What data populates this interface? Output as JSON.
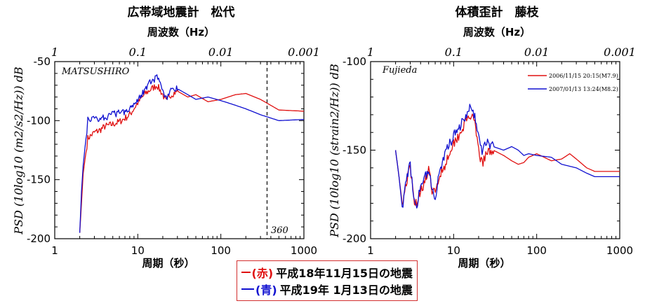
{
  "legend": {
    "items": [
      {
        "color_label": "(赤)",
        "text": "平成18年11月15日の地震",
        "color": "#e01010"
      },
      {
        "color_label": "(青)",
        "text": "平成19年 1月13日の地震",
        "color": "#1010d0"
      }
    ]
  },
  "chart_data": [
    {
      "type": "line",
      "title": "広帯域地震計　松代",
      "top_axis_label": "周波数（Hz）",
      "top_ticks": [
        "1",
        "0.1",
        "0.01",
        "0.001"
      ],
      "xlabel": "周期（秒）",
      "ylabel": "PSD (10log10 (m2/s2/Hz)) dB",
      "xscale": "log",
      "xlim": [
        1,
        1000
      ],
      "ylim": [
        -200,
        -50
      ],
      "x_ticks": [
        "1",
        "10",
        "100",
        "1000"
      ],
      "y_ticks": [
        "-50",
        "-100",
        "-150",
        "-200"
      ],
      "station": "MATSUSHIRO",
      "annotation": {
        "label": "360",
        "x": 360
      },
      "series": [
        {
          "color": "#e01010",
          "points": [
            [
              2,
              -195
            ],
            [
              2.1,
              -170
            ],
            [
              2.2,
              -145
            ],
            [
              2.5,
              -115
            ],
            [
              3,
              -110
            ],
            [
              3.5,
              -108
            ],
            [
              4,
              -105
            ],
            [
              5,
              -103
            ],
            [
              6,
              -101
            ],
            [
              7,
              -98
            ],
            [
              8,
              -95
            ],
            [
              10,
              -85
            ],
            [
              12,
              -78
            ],
            [
              14,
              -74
            ],
            [
              17,
              -70
            ],
            [
              20,
              -78
            ],
            [
              22,
              -84
            ],
            [
              25,
              -78
            ],
            [
              30,
              -75
            ],
            [
              40,
              -80
            ],
            [
              50,
              -78
            ],
            [
              70,
              -84
            ],
            [
              100,
              -82
            ],
            [
              150,
              -78
            ],
            [
              200,
              -77
            ],
            [
              300,
              -82
            ],
            [
              500,
              -91
            ],
            [
              1000,
              -92
            ]
          ]
        },
        {
          "color": "#1010d0",
          "points": [
            [
              2,
              -195
            ],
            [
              2.1,
              -160
            ],
            [
              2.2,
              -138
            ],
            [
              2.5,
              -100
            ],
            [
              3,
              -98
            ],
            [
              3.5,
              -98
            ],
            [
              4,
              -97
            ],
            [
              5,
              -95
            ],
            [
              6,
              -93
            ],
            [
              7,
              -92
            ],
            [
              8,
              -89
            ],
            [
              10,
              -82
            ],
            [
              12,
              -74
            ],
            [
              14,
              -68
            ],
            [
              17,
              -64
            ],
            [
              20,
              -74
            ],
            [
              22,
              -82
            ],
            [
              25,
              -75
            ],
            [
              30,
              -73
            ],
            [
              40,
              -78
            ],
            [
              50,
              -82
            ],
            [
              70,
              -80
            ],
            [
              100,
              -83
            ],
            [
              150,
              -87
            ],
            [
              200,
              -90
            ],
            [
              300,
              -95
            ],
            [
              500,
              -100
            ],
            [
              1000,
              -99
            ]
          ]
        }
      ]
    },
    {
      "type": "line",
      "title": "体積歪計　藤枝",
      "top_axis_label": "周波数（Hz）",
      "top_ticks": [
        "1",
        "0.1",
        "0.01",
        "0.001"
      ],
      "xlabel": "周期（秒）",
      "ylabel": "PSD (10log10 (strain2/Hz)) dB",
      "xscale": "log",
      "xlim": [
        1,
        1000
      ],
      "ylim": [
        -200,
        -100
      ],
      "x_ticks": [
        "1",
        "10",
        "100",
        "1000"
      ],
      "y_ticks": [
        "-100",
        "-150",
        "-200"
      ],
      "station": "Fujieda",
      "legend": [
        {
          "name": "2006/11/15 20:15(M7.9)",
          "color": "#e01010"
        },
        {
          "name": "2007/01/13 13:24(M8.2)",
          "color": "#1010d0"
        }
      ],
      "series": [
        {
          "color": "#e01010",
          "points": [
            [
              2,
              -150
            ],
            [
              2.2,
              -165
            ],
            [
              2.4,
              -180
            ],
            [
              2.7,
              -168
            ],
            [
              3,
              -160
            ],
            [
              3.3,
              -177
            ],
            [
              3.6,
              -180
            ],
            [
              4,
              -172
            ],
            [
              4.5,
              -168
            ],
            [
              5,
              -162
            ],
            [
              5.5,
              -172
            ],
            [
              6,
              -175
            ],
            [
              6.5,
              -168
            ],
            [
              7,
              -162
            ],
            [
              8,
              -158
            ],
            [
              9,
              -150
            ],
            [
              10,
              -146
            ],
            [
              12,
              -140
            ],
            [
              14,
              -134
            ],
            [
              16,
              -130
            ],
            [
              18,
              -136
            ],
            [
              20,
              -150
            ],
            [
              22,
              -158
            ],
            [
              25,
              -152
            ],
            [
              30,
              -150
            ],
            [
              40,
              -153
            ],
            [
              50,
              -156
            ],
            [
              60,
              -158
            ],
            [
              70,
              -157
            ],
            [
              80,
              -154
            ],
            [
              100,
              -152
            ],
            [
              150,
              -156
            ],
            [
              200,
              -155
            ],
            [
              250,
              -152
            ],
            [
              300,
              -155
            ],
            [
              400,
              -160
            ],
            [
              500,
              -162
            ],
            [
              1000,
              -162
            ]
          ]
        },
        {
          "color": "#1010d0",
          "points": [
            [
              2,
              -150
            ],
            [
              2.2,
              -165
            ],
            [
              2.4,
              -182
            ],
            [
              2.7,
              -168
            ],
            [
              3,
              -158
            ],
            [
              3.3,
              -178
            ],
            [
              3.6,
              -182
            ],
            [
              4,
              -170
            ],
            [
              4.5,
              -165
            ],
            [
              5,
              -160
            ],
            [
              5.5,
              -173
            ],
            [
              6,
              -177
            ],
            [
              6.5,
              -166
            ],
            [
              7,
              -160
            ],
            [
              8,
              -152
            ],
            [
              9,
              -146
            ],
            [
              10,
              -142
            ],
            [
              12,
              -136
            ],
            [
              14,
              -130
            ],
            [
              16,
              -125
            ],
            [
              18,
              -132
            ],
            [
              20,
              -142
            ],
            [
              22,
              -150
            ],
            [
              25,
              -146
            ],
            [
              30,
              -148
            ],
            [
              40,
              -150
            ],
            [
              50,
              -148
            ],
            [
              60,
              -150
            ],
            [
              70,
              -153
            ],
            [
              80,
              -152
            ],
            [
              100,
              -153
            ],
            [
              150,
              -154
            ],
            [
              200,
              -158
            ],
            [
              300,
              -160
            ],
            [
              400,
              -163
            ],
            [
              500,
              -165
            ],
            [
              1000,
              -165
            ]
          ]
        }
      ]
    }
  ]
}
